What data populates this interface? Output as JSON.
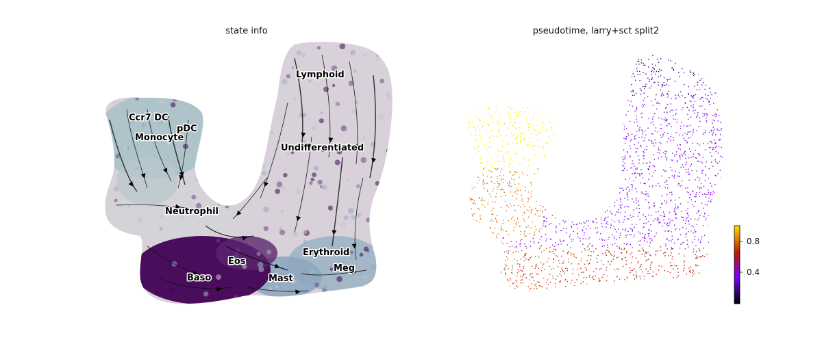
{
  "panels": {
    "left_title": "state info",
    "right_title": "pseudotime, larry+sct split2"
  },
  "colorbar": {
    "ticks": [
      "0.8",
      "0.4"
    ],
    "tick_values": [
      0.8,
      0.4
    ],
    "range": [
      0.0,
      1.0
    ],
    "colormap": "gnuplot",
    "colors": [
      "#000000",
      "#7a00ff",
      "#b81a00",
      "#ffe000"
    ]
  },
  "chart_data": [
    {
      "type": "scatter",
      "title": "state info",
      "embedding": "2D embedding with velocity streamlines",
      "categories": [
        "Ccr7 DC",
        "pDC",
        "Monocyte",
        "Lymphoid",
        "Undifferentiated",
        "Neutrophil",
        "Eos",
        "Erythroid",
        "Baso",
        "Mast",
        "Meg"
      ],
      "category_colors": {
        "Undifferentiated": "#d9d1d9",
        "Lymphoid": "#d9d1d9",
        "Monocyte": "#a9c2c8",
        "Ccr7 DC": "#a9c2c8",
        "pDC": "#a9c2c8",
        "Neutrophil": "#d9d1d9",
        "Baso": "#4a0d5c",
        "Eos": "#4a0d5c",
        "Mast": "#8ea7bd",
        "Erythroid": "#9cb4c4",
        "Meg": "#9cb4c4"
      },
      "streamlines": true,
      "axes": "off"
    },
    {
      "type": "scatter",
      "title": "pseudotime, larry+sct split2",
      "color_variable": "pseudotime",
      "colormap": "gnuplot",
      "colorbar_ticks": [
        0.4,
        0.8
      ],
      "axes": "off"
    }
  ],
  "state_labels": [
    {
      "name": "Ccr7 DC",
      "text": "Ccr7 DC"
    },
    {
      "name": "pDC",
      "text": "pDC"
    },
    {
      "name": "Monocyte",
      "text": "Monocyte"
    },
    {
      "name": "Lymphoid",
      "text": "Lymphoid"
    },
    {
      "name": "Undifferentiated",
      "text": "Undifferentiated"
    },
    {
      "name": "Neutrophil",
      "text": "Neutrophil"
    },
    {
      "name": "Eos",
      "text": "Eos"
    },
    {
      "name": "Erythroid",
      "text": "Erythroid"
    },
    {
      "name": "Baso",
      "text": "Baso"
    },
    {
      "name": "Mast",
      "text": "Mast"
    },
    {
      "name": "Meg",
      "text": "Meg"
    }
  ]
}
